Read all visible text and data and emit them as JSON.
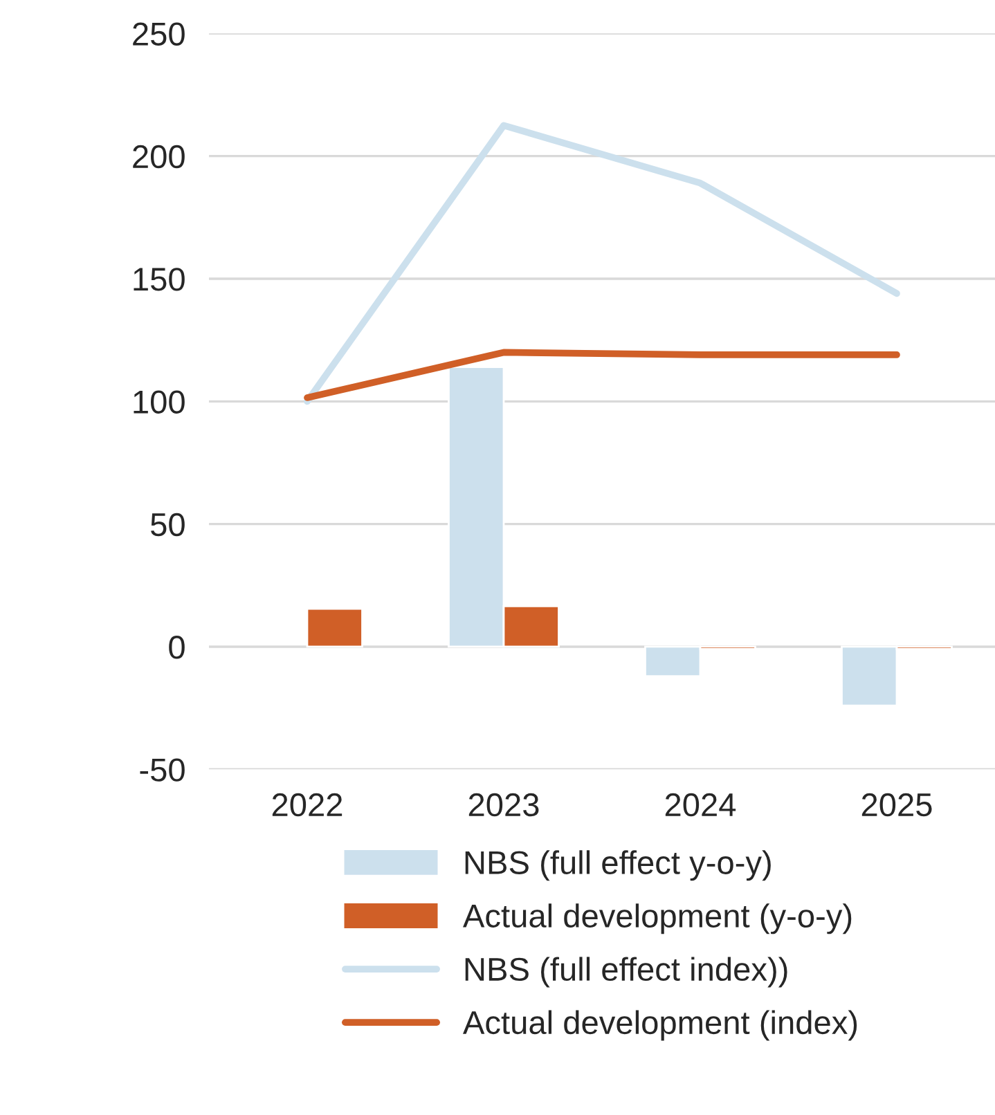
{
  "chart_data": {
    "type": "bar",
    "categories": [
      "2022",
      "2023",
      "2024",
      "2025"
    ],
    "series": [
      {
        "name": "NBS (full effect y-o-y)",
        "color": "#cce0ed",
        "values": [
          null,
          114,
          -12,
          -24
        ]
      },
      {
        "name": "Actual development (y-o-y)",
        "color": "#d05f27",
        "values": [
          15.5,
          16.5,
          -1,
          -1
        ]
      },
      {
        "name": "NBS (full effect index))",
        "type": "line",
        "color": "#cce0ed",
        "values": [
          100,
          212.5,
          189,
          144
        ]
      },
      {
        "name": "Actual development (index)",
        "type": "line",
        "color": "#d05f27",
        "values": [
          101.5,
          120,
          119,
          119
        ]
      }
    ],
    "ylim": [
      -50,
      250
    ],
    "yticks": [
      -50,
      0,
      50,
      100,
      150,
      200,
      250
    ],
    "grid": "y",
    "legend": "bottom",
    "marker": "none",
    "line_style": "solid"
  }
}
